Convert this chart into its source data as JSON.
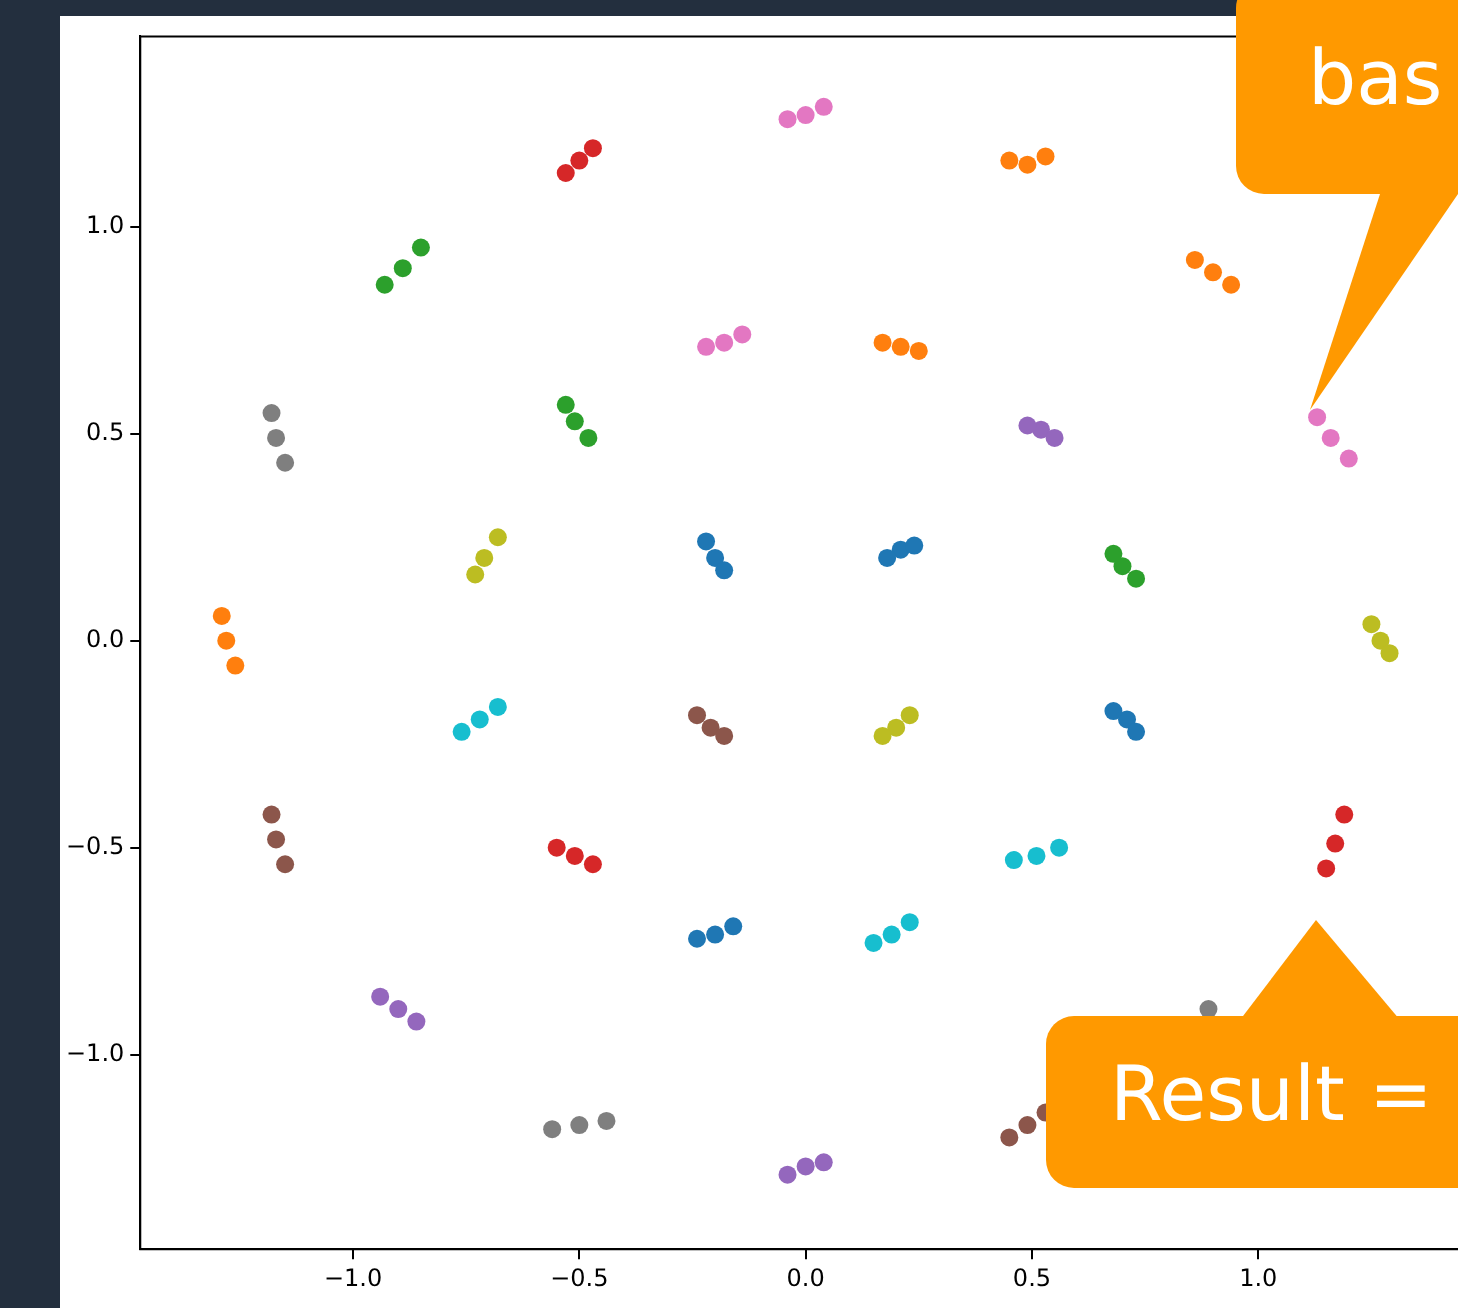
{
  "chart_data": {
    "type": "scatter",
    "marker": "circle",
    "grid": false,
    "legend": false,
    "xlim": [
      -1.47,
      1.47
    ],
    "ylim": [
      -1.47,
      1.46
    ],
    "xticks": [
      {
        "value": -1,
        "label": "−1.0"
      },
      {
        "value": -0.5,
        "label": "−0.5"
      },
      {
        "value": 0,
        "label": "0.0"
      },
      {
        "value": 0.5,
        "label": "0.5"
      },
      {
        "value": 1,
        "label": "1.0"
      }
    ],
    "yticks": [
      {
        "value": -1,
        "label": "−1.0"
      },
      {
        "value": -0.5,
        "label": "−0.5"
      },
      {
        "value": 0,
        "label": "0.0"
      },
      {
        "value": 0.5,
        "label": "0.5"
      },
      {
        "value": 1,
        "label": "1.0"
      }
    ],
    "series": [
      {
        "color": "#1f77b4",
        "x": [
          -0.2,
          -0.22,
          -0.18,
          0.21,
          0.18,
          0.24,
          0.71,
          0.68,
          0.73,
          -0.2,
          -0.24,
          -0.16
        ],
        "values": [
          0.2,
          0.24,
          0.17,
          0.22,
          0.2,
          0.23,
          -0.19,
          -0.17,
          -0.22,
          -0.71,
          -0.72,
          -0.69
        ]
      },
      {
        "color": "#ff7f0e",
        "x": [
          0.49,
          0.45,
          0.53,
          0.9,
          0.86,
          0.94,
          0.21,
          0.17,
          0.25,
          -1.28,
          -1.29,
          -1.26
        ],
        "values": [
          1.15,
          1.16,
          1.17,
          0.89,
          0.92,
          0.86,
          0.71,
          0.72,
          0.7,
          0.0,
          0.06,
          -0.06
        ]
      },
      {
        "color": "#2ca02c",
        "x": [
          -0.89,
          -0.93,
          -0.85,
          -0.51,
          -0.53,
          -0.48,
          0.7,
          0.68,
          0.73
        ],
        "values": [
          0.9,
          0.86,
          0.95,
          0.53,
          0.57,
          0.49,
          0.18,
          0.21,
          0.15
        ]
      },
      {
        "color": "#d62728",
        "x": [
          -0.5,
          -0.53,
          -0.47,
          -0.51,
          -0.55,
          -0.47,
          1.17,
          1.15,
          1.19
        ],
        "values": [
          1.16,
          1.13,
          1.19,
          -0.52,
          -0.5,
          -0.54,
          -0.49,
          -0.55,
          -0.42
        ]
      },
      {
        "color": "#9467bd",
        "x": [
          0.52,
          0.49,
          0.55,
          -0.9,
          -0.94,
          -0.86,
          0.0,
          -0.04,
          0.04
        ],
        "values": [
          0.51,
          0.52,
          0.49,
          -0.89,
          -0.86,
          -0.92,
          -1.27,
          -1.29,
          -1.26
        ]
      },
      {
        "color": "#8c564b",
        "x": [
          -0.21,
          -0.24,
          -0.18,
          -1.17,
          -1.18,
          -1.15,
          0.49,
          0.45,
          0.53
        ],
        "values": [
          -0.21,
          -0.18,
          -0.23,
          -0.48,
          -0.42,
          -0.54,
          -1.17,
          -1.2,
          -1.14
        ]
      },
      {
        "color": "#e377c2",
        "x": [
          0.0,
          -0.04,
          0.04,
          -0.18,
          -0.22,
          -0.14,
          1.16,
          1.13,
          1.2
        ],
        "values": [
          1.27,
          1.26,
          1.29,
          0.72,
          0.71,
          0.74,
          0.49,
          0.54,
          0.44
        ]
      },
      {
        "color": "#7f7f7f",
        "x": [
          -1.17,
          -1.18,
          -1.15,
          0.89,
          -0.5,
          -0.56,
          -0.44
        ],
        "values": [
          0.49,
          0.55,
          0.43,
          -0.89,
          -1.17,
          -1.18,
          -1.16
        ]
      },
      {
        "color": "#bcbd22",
        "x": [
          -0.71,
          -0.73,
          -0.68,
          0.2,
          0.17,
          0.23,
          1.27,
          1.25,
          1.29
        ],
        "values": [
          0.2,
          0.16,
          0.25,
          -0.21,
          -0.23,
          -0.18,
          0.0,
          0.04,
          -0.03
        ]
      },
      {
        "color": "#17becf",
        "x": [
          -0.72,
          -0.76,
          -0.68,
          0.51,
          0.46,
          0.56,
          0.19,
          0.15,
          0.23
        ],
        "values": [
          -0.19,
          -0.22,
          -0.16,
          -0.52,
          -0.53,
          -0.5,
          -0.71,
          -0.73,
          -0.68
        ]
      }
    ],
    "annotations": [
      "bas",
      "Result ="
    ]
  }
}
